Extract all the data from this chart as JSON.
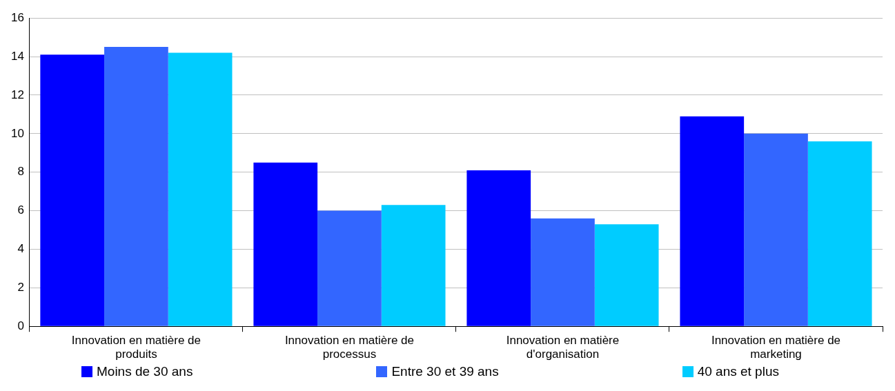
{
  "chart_data": {
    "type": "bar",
    "categories": [
      "Innovation en matière de produits",
      "Innovation en matière de processus",
      "Innovation en matière d'organisation",
      "Innovation en matière de marketing"
    ],
    "series": [
      {
        "name": "Moins de 30 ans",
        "color": "#0000ff",
        "values": [
          14.1,
          8.5,
          8.1,
          10.9
        ]
      },
      {
        "name": "Entre 30 et 39 ans",
        "color": "#3366ff",
        "values": [
          14.5,
          6.0,
          5.6,
          10.0
        ]
      },
      {
        "name": "40 ans et plus",
        "color": "#00ccff",
        "values": [
          14.2,
          6.3,
          5.3,
          9.6
        ]
      }
    ],
    "ylim": [
      0,
      16
    ],
    "yticks": [
      0,
      2,
      4,
      6,
      8,
      10,
      12,
      14,
      16
    ],
    "grid": "y",
    "legend": "bottom"
  }
}
